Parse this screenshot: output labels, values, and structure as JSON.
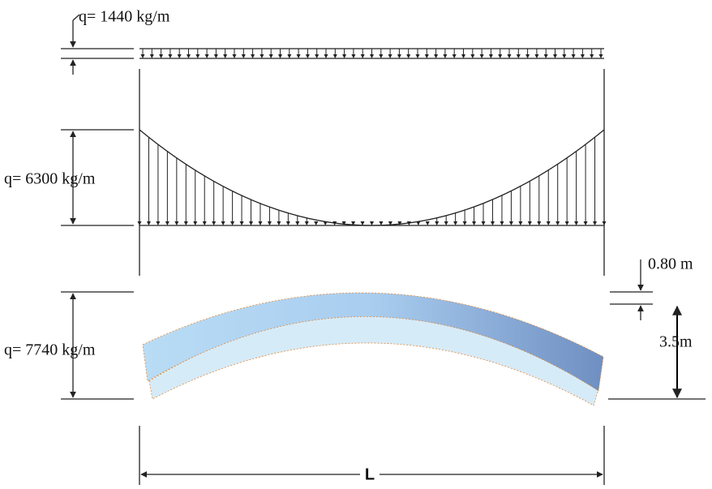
{
  "labels": {
    "load_1": "q= 1440 kg/m",
    "load_2": "q= 6300 kg/m",
    "load_3": "q= 7740 kg/m",
    "thickness": "0.80 m",
    "rise": "3.5m",
    "span": "L"
  }
}
